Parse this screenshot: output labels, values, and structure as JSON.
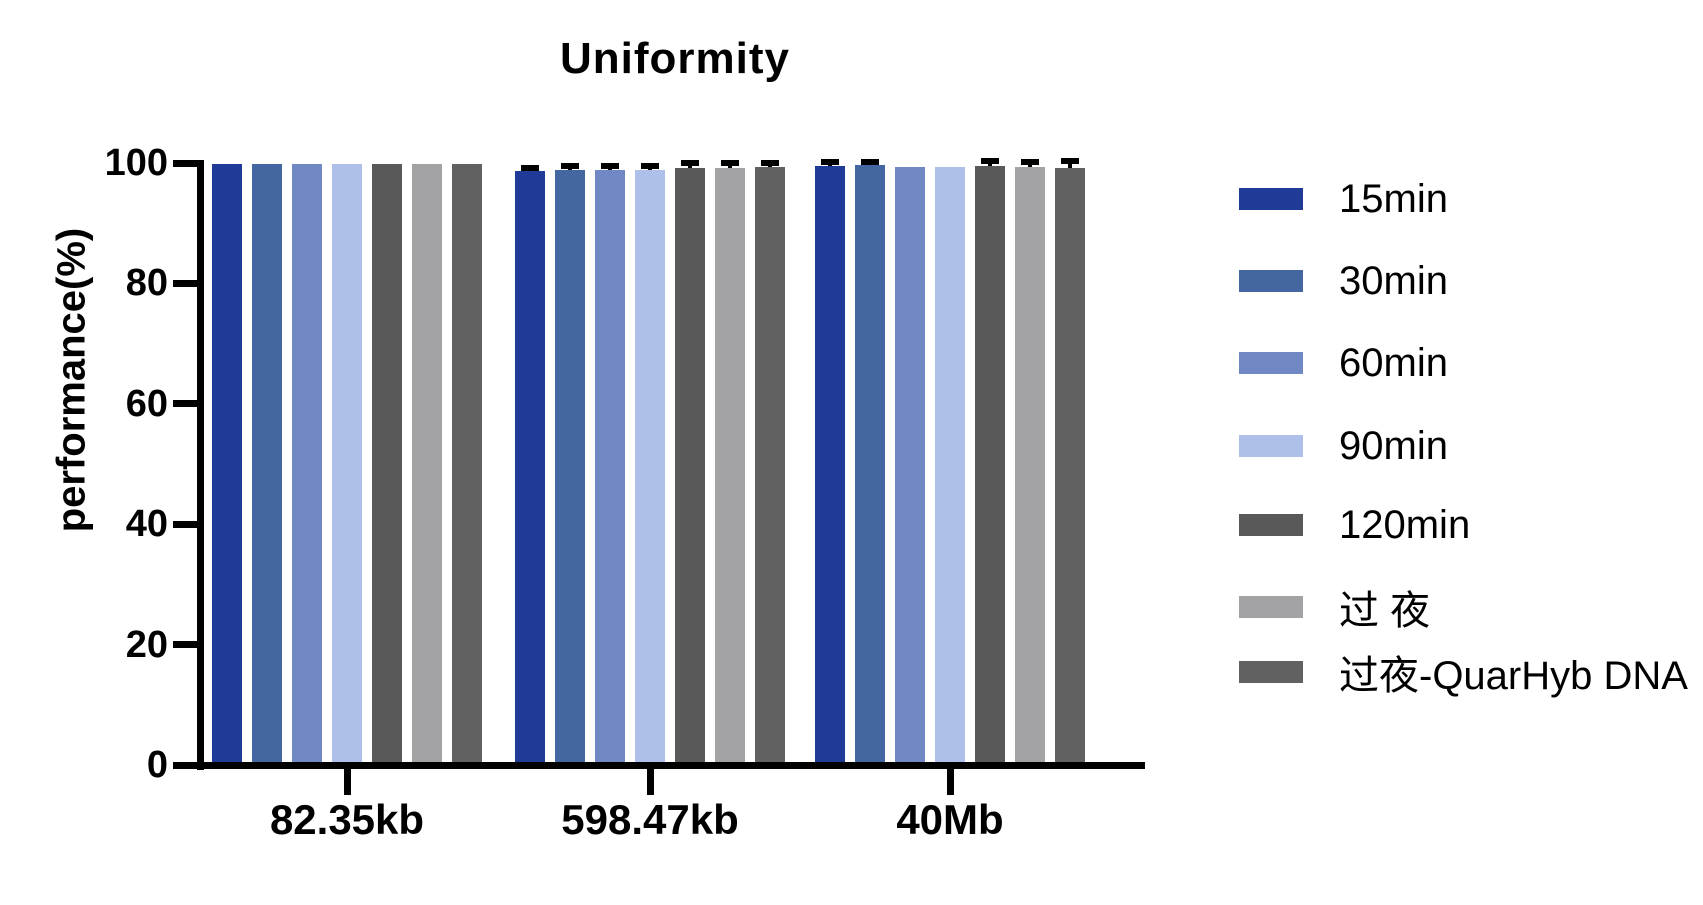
{
  "title": "Uniformity",
  "chart_data": {
    "type": "bar",
    "title": "Uniformity",
    "xlabel": "",
    "ylabel": "performance(%)",
    "ylim": [
      0,
      100
    ],
    "yticks": [
      0,
      20,
      40,
      60,
      80,
      100
    ],
    "grid": false,
    "legend_position": "right",
    "categories": [
      "82.35kb",
      "598.47kb",
      "40Mb"
    ],
    "series": [
      {
        "name": "15min",
        "color": "#1F3B97",
        "values": [
          99.8,
          98.6,
          99.5
        ],
        "errors": [
          0,
          0.2,
          0.3
        ]
      },
      {
        "name": "30min",
        "color": "#4467A1",
        "values": [
          99.9,
          98.9,
          99.7
        ],
        "errors": [
          0,
          0.3,
          0.2
        ]
      },
      {
        "name": "60min",
        "color": "#7088C4",
        "values": [
          99.8,
          98.8,
          99.3
        ],
        "errors": [
          0,
          0.3,
          0
        ]
      },
      {
        "name": "90min",
        "color": "#AEC0EA",
        "values": [
          99.9,
          98.9,
          99.4
        ],
        "errors": [
          0,
          0.2,
          0
        ]
      },
      {
        "name": "120min",
        "color": "#595959",
        "values": [
          99.8,
          99.1,
          99.5
        ],
        "errors": [
          0,
          0.5,
          0.5
        ]
      },
      {
        "name": "过 夜",
        "color": "#A3A3A6",
        "values": [
          99.9,
          99.2,
          99.3
        ],
        "errors": [
          0,
          0.5,
          0.6
        ]
      },
      {
        "name": "过夜-QuarHyb DNA",
        "color": "#616161",
        "values": [
          99.8,
          99.3,
          99.2
        ],
        "errors": [
          0,
          0.4,
          0.8
        ]
      }
    ],
    "error_bar_color": "#000000",
    "axis_color": "#000000",
    "background_color": "#FFFFFF"
  }
}
